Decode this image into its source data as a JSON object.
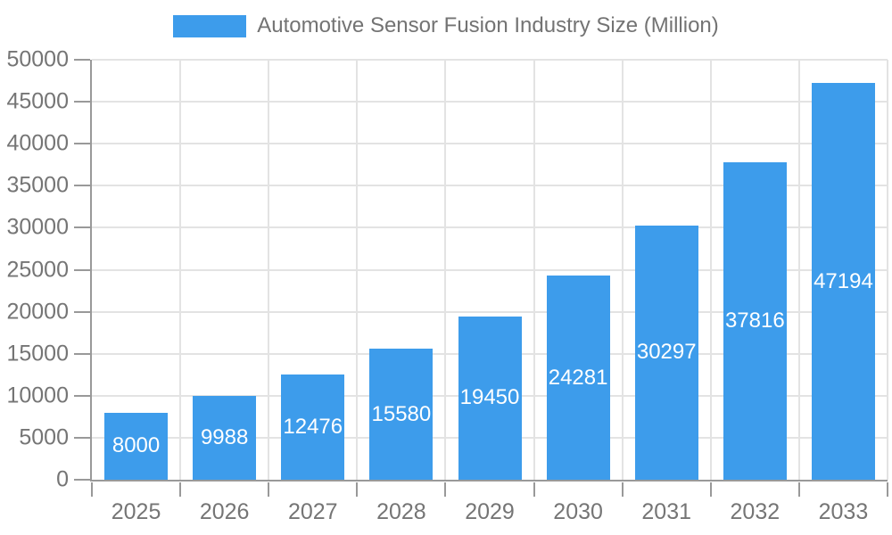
{
  "chart_data": {
    "type": "bar",
    "title": "Automotive Sensor Fusion Industry Size (Million)",
    "legend": "Automotive Sensor Fusion Industry Size (Million)",
    "legend_position": "top",
    "categories": [
      "2025",
      "2026",
      "2027",
      "2028",
      "2029",
      "2030",
      "2031",
      "2032",
      "2033"
    ],
    "values": [
      8000,
      9988,
      12476,
      15580,
      19450,
      24281,
      30297,
      37816,
      47194
    ],
    "xlabel": "",
    "ylabel": "",
    "ylim": [
      0,
      50000
    ],
    "y_tick_step": 5000,
    "grid": true,
    "bar_label_position": "inside-center",
    "colors": {
      "bar": "#3D9CEB",
      "axis": "#999999",
      "grid": "#E3E3E3",
      "axis_label": "#757575",
      "legend_label": "#737373",
      "bar_label": "#FFFFFF"
    }
  }
}
